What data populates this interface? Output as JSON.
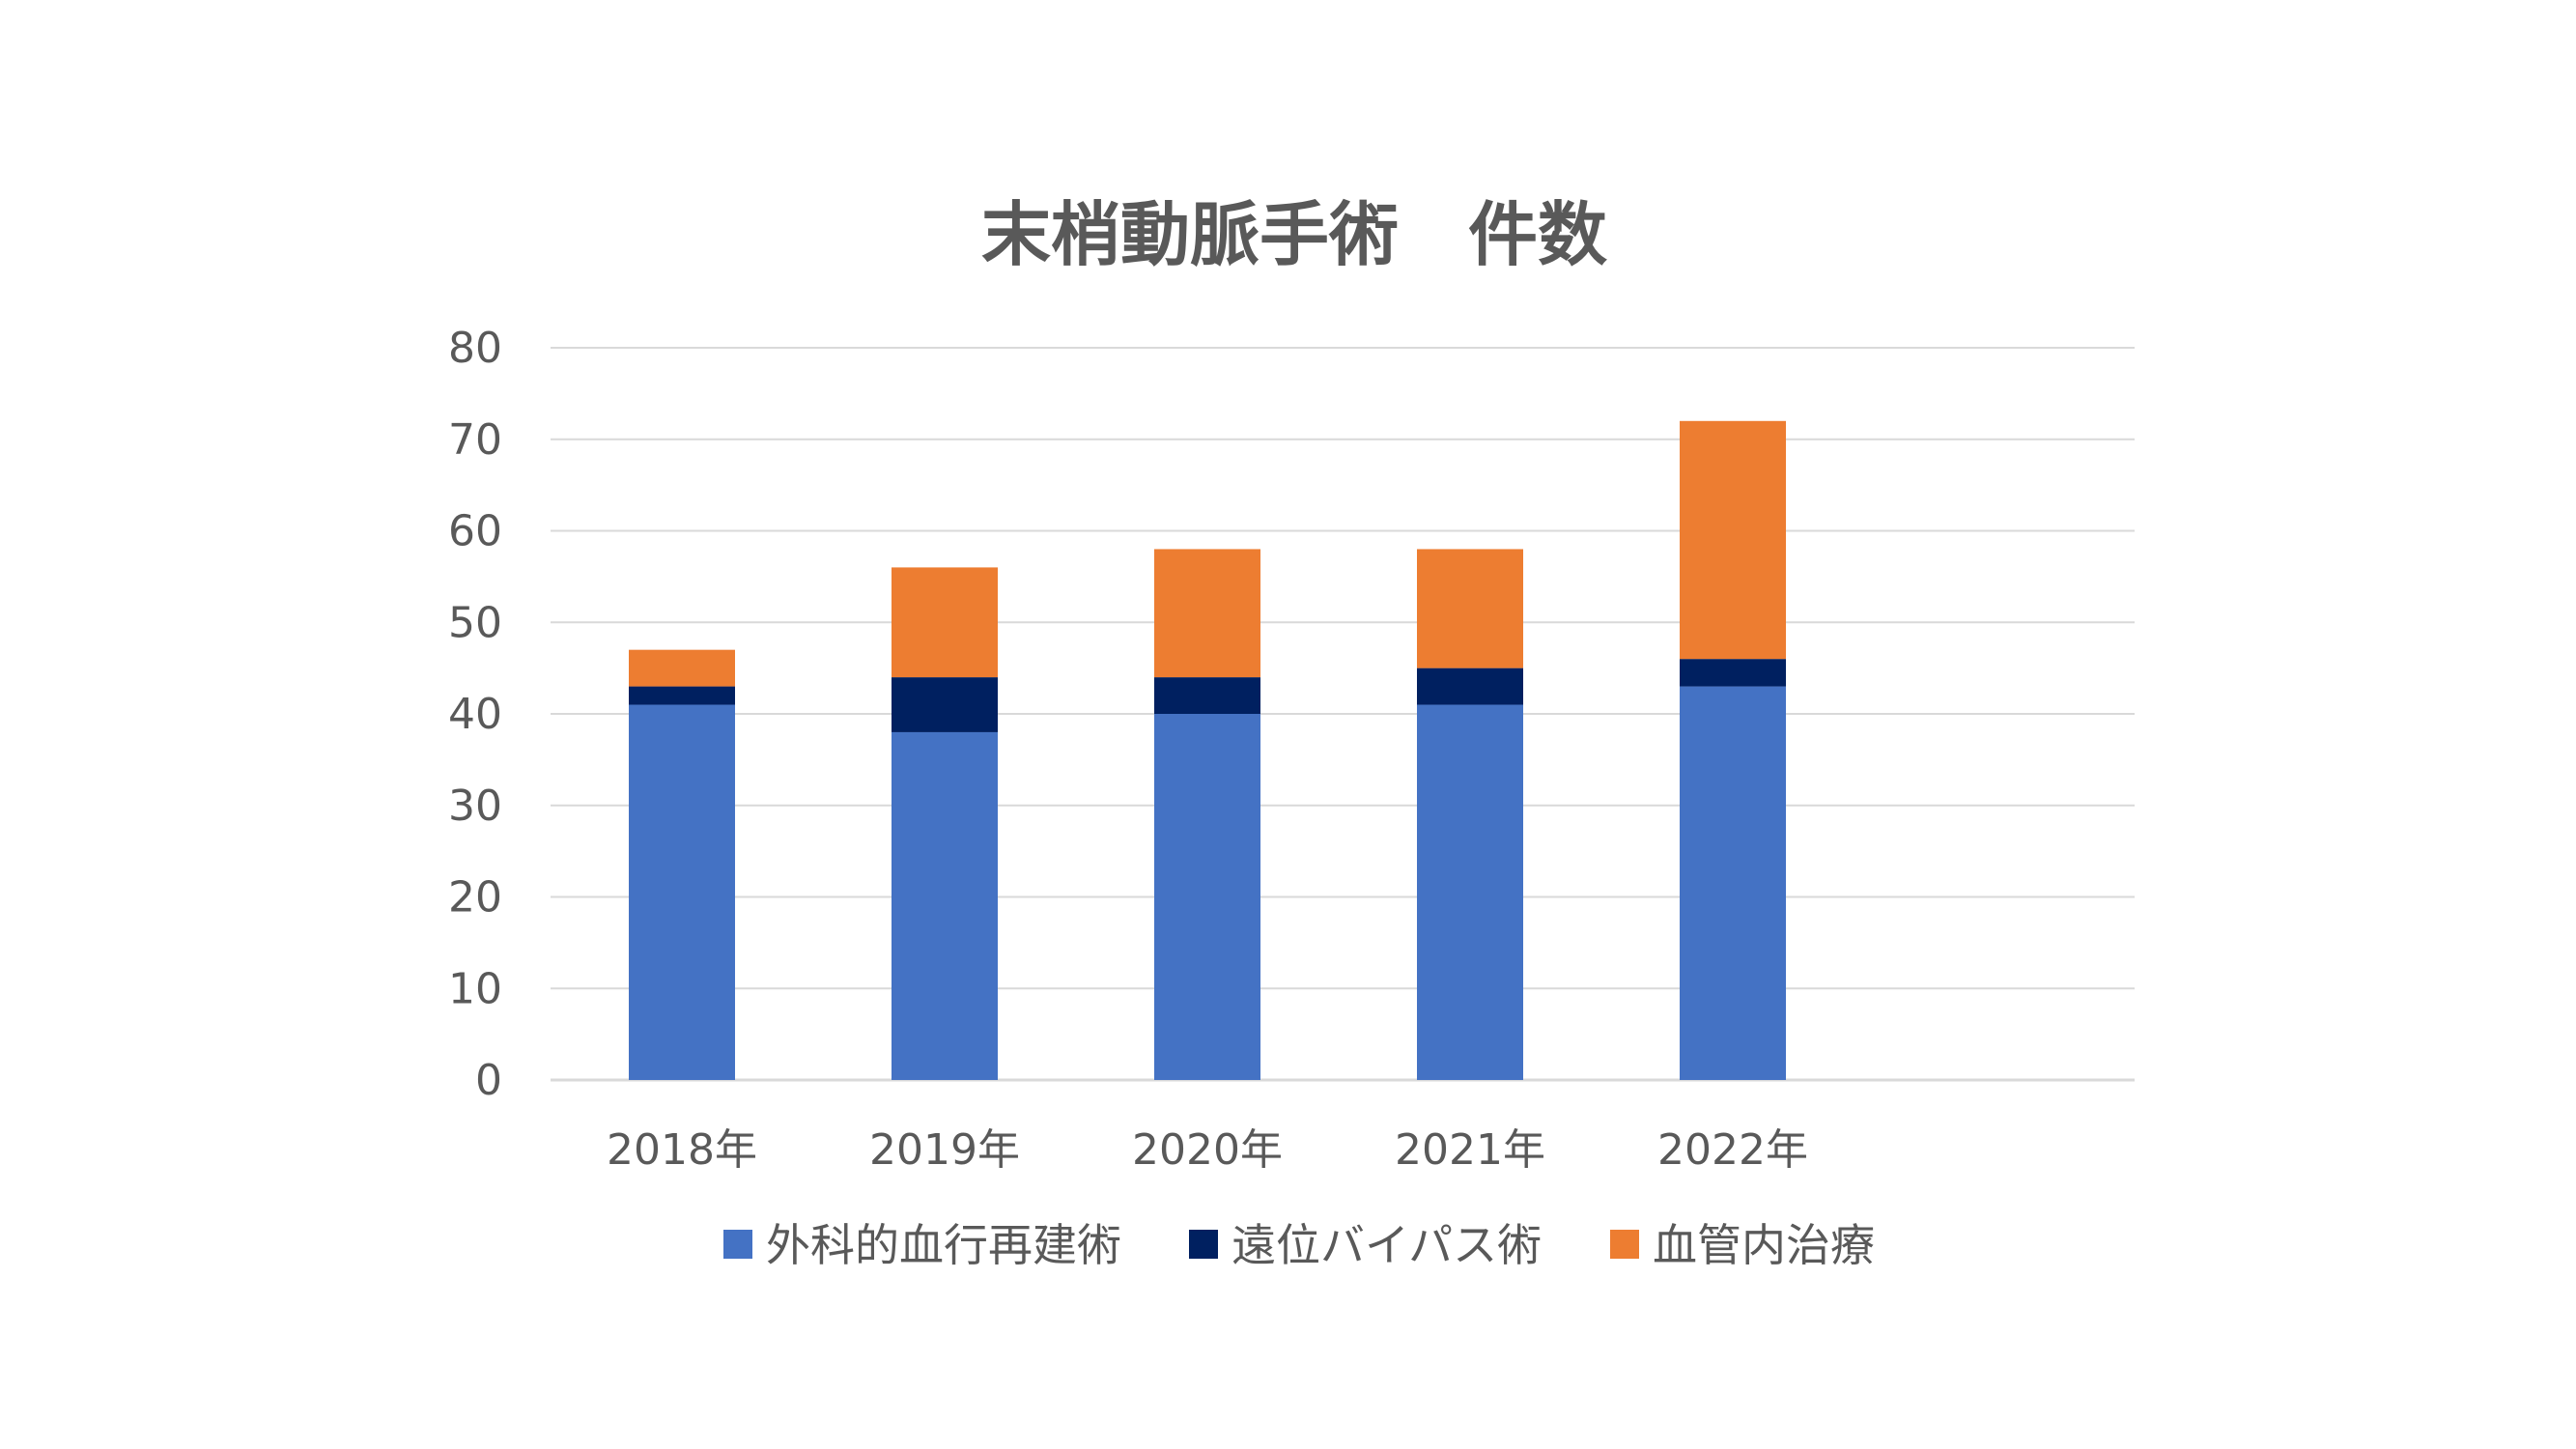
{
  "chart_data": {
    "type": "bar",
    "stacked": true,
    "title": "末梢動脈手術　件数",
    "categories": [
      "2018年",
      "2019年",
      "2020年",
      "2021年",
      "2022年"
    ],
    "series": [
      {
        "name": "外科的血行再建術",
        "color": "#4472C4",
        "values": [
          41,
          38,
          40,
          41,
          43
        ]
      },
      {
        "name": "遠位バイパス術",
        "color": "#002060",
        "values": [
          2,
          6,
          4,
          4,
          3
        ]
      },
      {
        "name": "血管内治療",
        "color": "#ED7D31",
        "values": [
          4,
          12,
          14,
          13,
          26
        ]
      }
    ],
    "ylim": [
      0,
      80
    ],
    "yticks": [
      0,
      10,
      20,
      30,
      40,
      50,
      60,
      70,
      80
    ],
    "grid": true,
    "legend": "bottom",
    "colors": {
      "gridline": "#D9D9D9",
      "text": "#595959"
    }
  }
}
